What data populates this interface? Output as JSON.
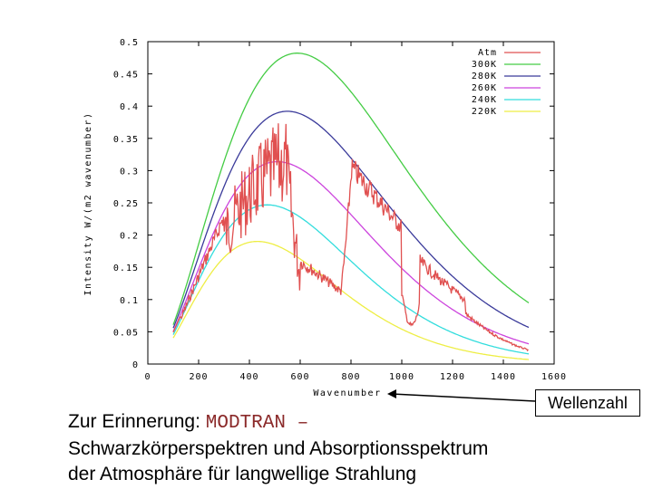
{
  "chart_data": {
    "type": "line",
    "xlabel": "Wavenumber",
    "ylabel": "Intensity W/(m2 wavenumber)",
    "xlim": [
      0,
      1600
    ],
    "ylim": [
      0,
      0.5
    ],
    "x_ticks": [
      "0",
      "200",
      "400",
      "600",
      "800",
      "1000",
      "1200",
      "1400",
      "1600"
    ],
    "y_ticks": [
      "0",
      "0.05",
      "0.1",
      "0.15",
      "0.2",
      "0.25",
      "0.3",
      "0.35",
      "0.4",
      "0.45",
      "0.5"
    ],
    "legend_position": "top-right",
    "series": [
      {
        "name": "Atm",
        "color": "#e05050",
        "temperature": null
      },
      {
        "name": "300K",
        "color": "#44cc44",
        "temperature": 300
      },
      {
        "name": "280K",
        "color": "#3a3a9a",
        "temperature": 280
      },
      {
        "name": "260K",
        "color": "#cc44dd",
        "temperature": 260
      },
      {
        "name": "240K",
        "color": "#33dddd",
        "temperature": 240
      },
      {
        "name": "220K",
        "color": "#eeee44",
        "temperature": 220
      }
    ]
  },
  "annotation": {
    "label": "Wellenzahl"
  },
  "caption": {
    "line1_prefix": "Zur Erinnerung: ",
    "line1_code": "MODTRAN –",
    "line2": "Schwarzkörperspektren und Absorptionsspektrum",
    "line3": "der Atmosphäre für langwellige Strahlung"
  }
}
